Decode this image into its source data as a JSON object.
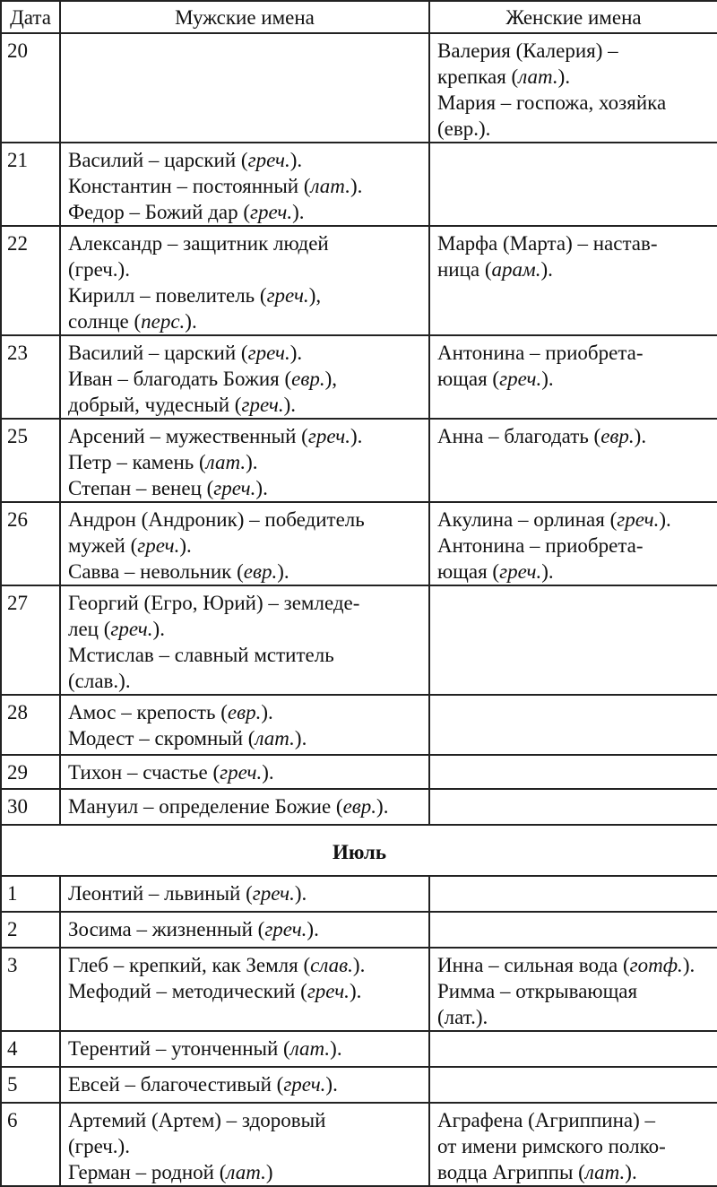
{
  "header": {
    "date": "Дата",
    "male": "Мужские имена",
    "female": "Женские имена"
  },
  "rows": [
    {
      "date": "20",
      "male": [],
      "female": [
        "Валерия (Калерия) –",
        "крепкая (лат.).",
        "Мария – госпожа, хозяйка",
        "(евр.)."
      ]
    },
    {
      "date": "21",
      "male": [
        "Василий – царский (греч.).",
        "Константин – постоянный (лат.).",
        "Федор – Божий дар (греч.)."
      ],
      "female": []
    },
    {
      "date": "22",
      "male": [
        "Александр – защитник людей",
        "(греч.).",
        "Кирилл – повелитель (греч.),",
        "солнце (перс.)."
      ],
      "female": [
        "Марфа (Марта) – настав-",
        "ница (арам.)."
      ]
    },
    {
      "date": "23",
      "male": [
        "Василий – царский (греч.).",
        "Иван – благодать Божия (евр.),",
        "добрый, чудесный (греч.)."
      ],
      "female": [
        "Антонина – приобрета-",
        "ющая (греч.)."
      ]
    },
    {
      "date": "25",
      "male": [
        "Арсений – мужественный (греч.).",
        "Петр – камень (лат.).",
        "Степан – венец (греч.)."
      ],
      "female": [
        "Анна – благодать (евр.)."
      ]
    },
    {
      "date": "26",
      "male": [
        "Андрон (Андроник) – победитель",
        "мужей (греч.).",
        "Савва – невольник (евр.)."
      ],
      "female": [
        "Акулина – орлиная (греч.).",
        "Антонина – приобрета-",
        "ющая (греч.)."
      ]
    },
    {
      "date": "27",
      "male": [
        "Георгий (Егро, Юрий) – земледе-",
        "лец (греч.).",
        "Мстислав – славный мститель",
        "(слав.)."
      ],
      "female": []
    },
    {
      "date": "28",
      "male": [
        "Амос – крепость (евр.).",
        "Модест – скромный (лат.)."
      ],
      "female": []
    },
    {
      "date": "29",
      "male": [
        "Тихон – счастье (греч.)."
      ],
      "female": []
    },
    {
      "date": "30",
      "male": [
        "Мануил – определение Божие (евр.)."
      ],
      "female": []
    },
    {
      "month": "Июль"
    },
    {
      "date": "1",
      "male": [
        "Леонтий – львиный (греч.)."
      ],
      "female": []
    },
    {
      "date": "2",
      "male": [
        "Зосима – жизненный (греч.)."
      ],
      "female": []
    },
    {
      "date": "3",
      "male": [
        "Глеб – крепкий, как Земля (слав.).",
        "Мефодий – методический (греч.)."
      ],
      "female": [
        "Инна – сильная вода (готф.).",
        "Римма – открывающая",
        "(лат.)."
      ]
    },
    {
      "date": "4",
      "male": [
        "Терентий – утонченный (лат.)."
      ],
      "female": []
    },
    {
      "date": "5",
      "male": [
        "Евсей – благочестивый (греч.)."
      ],
      "female": []
    },
    {
      "date": "6",
      "male": [
        "Артемий (Артем) – здоровый",
        "(греч.).",
        "Герман – родной (лат.)"
      ],
      "female": [
        "Аграфена (Агриппина) –",
        "от имени римского полко-",
        "водца Агриппы (лат.)."
      ]
    }
  ]
}
